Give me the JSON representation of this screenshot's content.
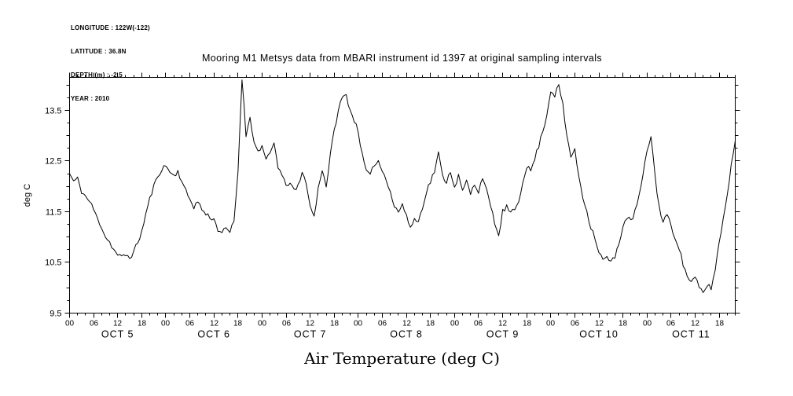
{
  "meta": {
    "longitude": "LONGITUDE : 122W(-122)",
    "latitude": "LATITUDE : 36.8N",
    "depth": "DEPTH (m) : -2.5",
    "year": "YEAR : 2010"
  },
  "chart": {
    "title": "Mooring M1 Metsys data from MBARI instrument id 1397 at original sampling intervals",
    "bottom_label": "Air Temperature (deg C)"
  },
  "colors": {
    "line": "#000000",
    "axis": "#000000",
    "background": "#ffffff"
  },
  "chart_data": {
    "type": "line",
    "title": "Mooring M1 Metsys data from MBARI instrument id 1397 at original sampling intervals",
    "xlabel": "Air Temperature (deg C)",
    "ylabel": "deg C",
    "ylim": [
      9.5,
      14.15
    ],
    "yticks": [
      9.5,
      10.5,
      11.5,
      12.5,
      13.5
    ],
    "y_minor_step": 0.25,
    "x_unit": "hours since 2010-10-05 00:00",
    "x_start_hour": 0,
    "x_end_hour": 166,
    "x_major_tick_hours": 6,
    "x_minor_tick_hours": 2,
    "hour_tick_labels": [
      "00",
      "06",
      "12",
      "18"
    ],
    "day_labels": [
      "OCT 5",
      "OCT 6",
      "OCT 7",
      "OCT 8",
      "OCT 9",
      "OCT 10",
      "OCT 11"
    ],
    "grid": false,
    "legend": "none",
    "series": [
      {
        "name": "air_temperature_degC",
        "x_step_hours": 1,
        "values": [
          12.25,
          12.1,
          12.15,
          11.9,
          11.8,
          11.7,
          11.55,
          11.35,
          11.2,
          11.0,
          10.9,
          10.75,
          10.65,
          10.6,
          10.65,
          10.6,
          10.7,
          10.9,
          11.1,
          11.45,
          11.75,
          12.0,
          12.2,
          12.35,
          12.4,
          12.3,
          12.2,
          12.3,
          12.1,
          11.9,
          11.75,
          11.6,
          11.7,
          11.55,
          11.45,
          11.4,
          11.35,
          11.15,
          11.1,
          11.15,
          11.1,
          11.3,
          12.3,
          14.15,
          13.0,
          13.4,
          12.85,
          12.7,
          12.8,
          12.5,
          12.65,
          12.85,
          12.4,
          12.2,
          12.0,
          12.1,
          11.9,
          12.0,
          12.25,
          12.1,
          11.6,
          11.4,
          11.95,
          12.35,
          12.0,
          12.6,
          13.1,
          13.5,
          13.75,
          13.8,
          13.5,
          13.3,
          13.1,
          12.6,
          12.3,
          12.2,
          12.45,
          12.5,
          12.3,
          12.15,
          11.9,
          11.6,
          11.5,
          11.65,
          11.4,
          11.2,
          11.35,
          11.3,
          11.6,
          11.9,
          12.1,
          12.3,
          12.65,
          12.2,
          12.1,
          12.3,
          12.0,
          12.2,
          11.9,
          12.1,
          11.85,
          12.05,
          11.9,
          12.2,
          11.9,
          11.6,
          11.3,
          11.0,
          11.5,
          11.6,
          11.45,
          11.55,
          11.7,
          12.1,
          12.4,
          12.3,
          12.55,
          12.8,
          13.1,
          13.4,
          13.9,
          13.8,
          14.0,
          13.6,
          13.0,
          12.6,
          12.7,
          12.2,
          11.8,
          11.5,
          11.2,
          11.0,
          10.7,
          10.55,
          10.6,
          10.5,
          10.6,
          10.9,
          11.2,
          11.4,
          11.3,
          11.5,
          11.8,
          12.2,
          12.7,
          13.0,
          12.2,
          11.6,
          11.3,
          11.45,
          11.2,
          11.0,
          10.8,
          10.45,
          10.25,
          10.1,
          10.2,
          10.0,
          9.9,
          10.05,
          10.0,
          10.35,
          10.9,
          11.35,
          11.85,
          12.4,
          12.9
        ]
      }
    ],
    "render_jitter": {
      "amplitude": 0.05,
      "subdivisions": 2,
      "seed": 11
    }
  }
}
